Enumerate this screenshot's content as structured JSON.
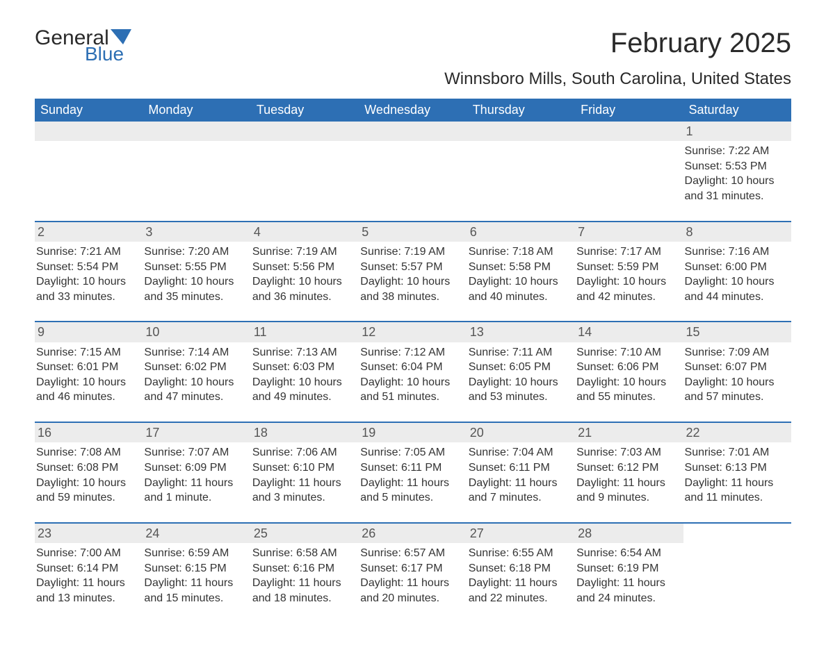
{
  "brand": {
    "general": "General",
    "blue": "Blue"
  },
  "title": "February 2025",
  "location": "Winnsboro Mills, South Carolina, United States",
  "colors": {
    "header_bg": "#2d6fb4",
    "header_text": "#ffffff",
    "daynum_bg": "#ececec",
    "row_divider": "#2d6fb4",
    "text": "#333333",
    "brand_blue": "#2d6fb4"
  },
  "dayHeaders": [
    "Sunday",
    "Monday",
    "Tuesday",
    "Wednesday",
    "Thursday",
    "Friday",
    "Saturday"
  ],
  "weeks": [
    [
      {
        "n": "",
        "empty": true
      },
      {
        "n": "",
        "empty": true
      },
      {
        "n": "",
        "empty": true
      },
      {
        "n": "",
        "empty": true
      },
      {
        "n": "",
        "empty": true
      },
      {
        "n": "",
        "empty": true
      },
      {
        "n": "1",
        "sunrise": "Sunrise: 7:22 AM",
        "sunset": "Sunset: 5:53 PM",
        "daylight": "Daylight: 10 hours and 31 minutes."
      }
    ],
    [
      {
        "n": "2",
        "sunrise": "Sunrise: 7:21 AM",
        "sunset": "Sunset: 5:54 PM",
        "daylight": "Daylight: 10 hours and 33 minutes."
      },
      {
        "n": "3",
        "sunrise": "Sunrise: 7:20 AM",
        "sunset": "Sunset: 5:55 PM",
        "daylight": "Daylight: 10 hours and 35 minutes."
      },
      {
        "n": "4",
        "sunrise": "Sunrise: 7:19 AM",
        "sunset": "Sunset: 5:56 PM",
        "daylight": "Daylight: 10 hours and 36 minutes."
      },
      {
        "n": "5",
        "sunrise": "Sunrise: 7:19 AM",
        "sunset": "Sunset: 5:57 PM",
        "daylight": "Daylight: 10 hours and 38 minutes."
      },
      {
        "n": "6",
        "sunrise": "Sunrise: 7:18 AM",
        "sunset": "Sunset: 5:58 PM",
        "daylight": "Daylight: 10 hours and 40 minutes."
      },
      {
        "n": "7",
        "sunrise": "Sunrise: 7:17 AM",
        "sunset": "Sunset: 5:59 PM",
        "daylight": "Daylight: 10 hours and 42 minutes."
      },
      {
        "n": "8",
        "sunrise": "Sunrise: 7:16 AM",
        "sunset": "Sunset: 6:00 PM",
        "daylight": "Daylight: 10 hours and 44 minutes."
      }
    ],
    [
      {
        "n": "9",
        "sunrise": "Sunrise: 7:15 AM",
        "sunset": "Sunset: 6:01 PM",
        "daylight": "Daylight: 10 hours and 46 minutes."
      },
      {
        "n": "10",
        "sunrise": "Sunrise: 7:14 AM",
        "sunset": "Sunset: 6:02 PM",
        "daylight": "Daylight: 10 hours and 47 minutes."
      },
      {
        "n": "11",
        "sunrise": "Sunrise: 7:13 AM",
        "sunset": "Sunset: 6:03 PM",
        "daylight": "Daylight: 10 hours and 49 minutes."
      },
      {
        "n": "12",
        "sunrise": "Sunrise: 7:12 AM",
        "sunset": "Sunset: 6:04 PM",
        "daylight": "Daylight: 10 hours and 51 minutes."
      },
      {
        "n": "13",
        "sunrise": "Sunrise: 7:11 AM",
        "sunset": "Sunset: 6:05 PM",
        "daylight": "Daylight: 10 hours and 53 minutes."
      },
      {
        "n": "14",
        "sunrise": "Sunrise: 7:10 AM",
        "sunset": "Sunset: 6:06 PM",
        "daylight": "Daylight: 10 hours and 55 minutes."
      },
      {
        "n": "15",
        "sunrise": "Sunrise: 7:09 AM",
        "sunset": "Sunset: 6:07 PM",
        "daylight": "Daylight: 10 hours and 57 minutes."
      }
    ],
    [
      {
        "n": "16",
        "sunrise": "Sunrise: 7:08 AM",
        "sunset": "Sunset: 6:08 PM",
        "daylight": "Daylight: 10 hours and 59 minutes."
      },
      {
        "n": "17",
        "sunrise": "Sunrise: 7:07 AM",
        "sunset": "Sunset: 6:09 PM",
        "daylight": "Daylight: 11 hours and 1 minute."
      },
      {
        "n": "18",
        "sunrise": "Sunrise: 7:06 AM",
        "sunset": "Sunset: 6:10 PM",
        "daylight": "Daylight: 11 hours and 3 minutes."
      },
      {
        "n": "19",
        "sunrise": "Sunrise: 7:05 AM",
        "sunset": "Sunset: 6:11 PM",
        "daylight": "Daylight: 11 hours and 5 minutes."
      },
      {
        "n": "20",
        "sunrise": "Sunrise: 7:04 AM",
        "sunset": "Sunset: 6:11 PM",
        "daylight": "Daylight: 11 hours and 7 minutes."
      },
      {
        "n": "21",
        "sunrise": "Sunrise: 7:03 AM",
        "sunset": "Sunset: 6:12 PM",
        "daylight": "Daylight: 11 hours and 9 minutes."
      },
      {
        "n": "22",
        "sunrise": "Sunrise: 7:01 AM",
        "sunset": "Sunset: 6:13 PM",
        "daylight": "Daylight: 11 hours and 11 minutes."
      }
    ],
    [
      {
        "n": "23",
        "sunrise": "Sunrise: 7:00 AM",
        "sunset": "Sunset: 6:14 PM",
        "daylight": "Daylight: 11 hours and 13 minutes."
      },
      {
        "n": "24",
        "sunrise": "Sunrise: 6:59 AM",
        "sunset": "Sunset: 6:15 PM",
        "daylight": "Daylight: 11 hours and 15 minutes."
      },
      {
        "n": "25",
        "sunrise": "Sunrise: 6:58 AM",
        "sunset": "Sunset: 6:16 PM",
        "daylight": "Daylight: 11 hours and 18 minutes."
      },
      {
        "n": "26",
        "sunrise": "Sunrise: 6:57 AM",
        "sunset": "Sunset: 6:17 PM",
        "daylight": "Daylight: 11 hours and 20 minutes."
      },
      {
        "n": "27",
        "sunrise": "Sunrise: 6:55 AM",
        "sunset": "Sunset: 6:18 PM",
        "daylight": "Daylight: 11 hours and 22 minutes."
      },
      {
        "n": "28",
        "sunrise": "Sunrise: 6:54 AM",
        "sunset": "Sunset: 6:19 PM",
        "daylight": "Daylight: 11 hours and 24 minutes."
      },
      {
        "n": "",
        "empty": true,
        "noBand": true
      }
    ]
  ]
}
